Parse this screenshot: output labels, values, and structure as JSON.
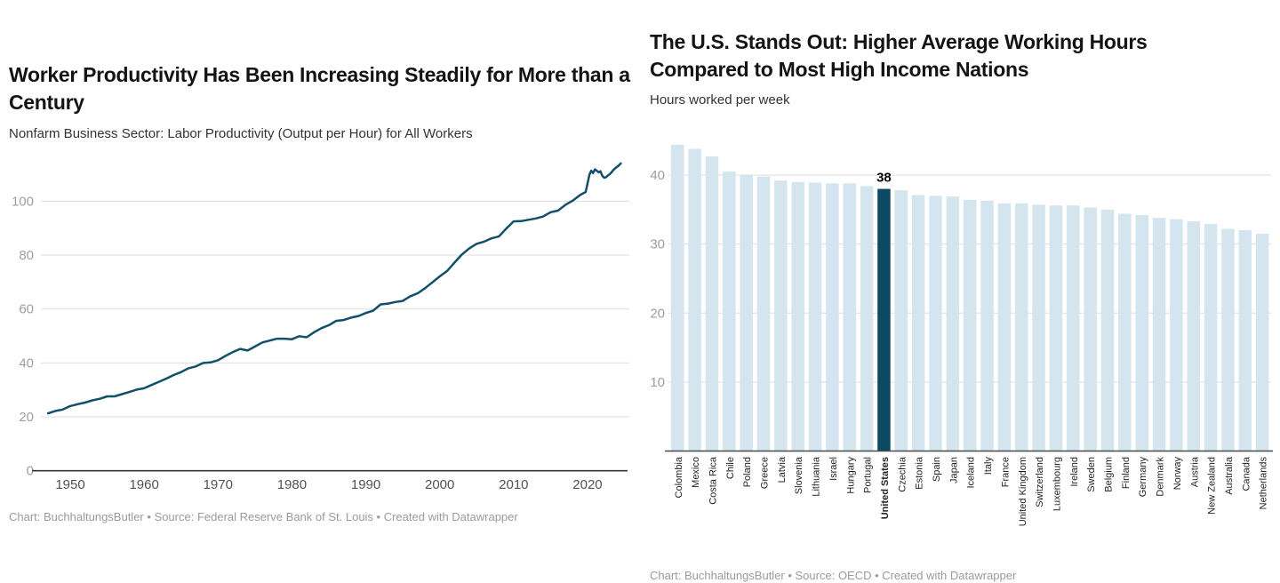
{
  "chart_data": [
    {
      "type": "line",
      "title": "Worker Productivity Has Been Increasing Steadily for More than a Century",
      "subtitle": "Nonfarm Business Sector: Labor Productivity (Output per Hour) for All Workers",
      "footer": "Chart: BuchhaltungsButler • Source: Federal Reserve Bank of St. Louis • Created with Datawrapper",
      "xlabel": "",
      "ylabel": "",
      "x_ticks": [
        1950,
        1960,
        1970,
        1980,
        1990,
        2000,
        2010,
        2020
      ],
      "y_ticks": [
        0,
        20,
        40,
        60,
        80,
        100
      ],
      "xlim": [
        1946.5,
        2025.5
      ],
      "ylim": [
        0,
        121
      ],
      "grid": true,
      "legend": "none",
      "line_color": "#124f6b",
      "series": [
        {
          "name": "Labor productivity index (output per hour)",
          "points": [
            [
              1947,
              21.3
            ],
            [
              1948,
              22.2
            ],
            [
              1949,
              22.7
            ],
            [
              1950,
              24
            ],
            [
              1951,
              24.7
            ],
            [
              1952,
              25.3
            ],
            [
              1953,
              26.1
            ],
            [
              1954,
              26.7
            ],
            [
              1955,
              27.6
            ],
            [
              1956,
              27.6
            ],
            [
              1957,
              28.4
            ],
            [
              1958,
              29.2
            ],
            [
              1959,
              30.1
            ],
            [
              1960,
              30.6
            ],
            [
              1961,
              31.8
            ],
            [
              1962,
              33
            ],
            [
              1963,
              34.2
            ],
            [
              1964,
              35.5
            ],
            [
              1965,
              36.6
            ],
            [
              1966,
              38
            ],
            [
              1967,
              38.7
            ],
            [
              1968,
              40
            ],
            [
              1969,
              40.2
            ],
            [
              1970,
              41
            ],
            [
              1971,
              42.6
            ],
            [
              1972,
              44
            ],
            [
              1973,
              45.2
            ],
            [
              1974,
              44.6
            ],
            [
              1975,
              46.1
            ],
            [
              1976,
              47.6
            ],
            [
              1977,
              48.3
            ],
            [
              1978,
              49
            ],
            [
              1979,
              49
            ],
            [
              1980,
              48.8
            ],
            [
              1981,
              49.9
            ],
            [
              1982,
              49.5
            ],
            [
              1983,
              51.4
            ],
            [
              1984,
              52.9
            ],
            [
              1985,
              54
            ],
            [
              1986,
              55.6
            ],
            [
              1987,
              55.9
            ],
            [
              1988,
              56.8
            ],
            [
              1989,
              57.4
            ],
            [
              1990,
              58.5
            ],
            [
              1991,
              59.4
            ],
            [
              1992,
              61.7
            ],
            [
              1993,
              62
            ],
            [
              1994,
              62.6
            ],
            [
              1995,
              63
            ],
            [
              1996,
              64.7
            ],
            [
              1997,
              65.8
            ],
            [
              1998,
              67.7
            ],
            [
              1999,
              69.9
            ],
            [
              2000,
              72.1
            ],
            [
              2001,
              74.1
            ],
            [
              2002,
              77.2
            ],
            [
              2003,
              80.2
            ],
            [
              2004,
              82.5
            ],
            [
              2005,
              84.2
            ],
            [
              2006,
              85
            ],
            [
              2007,
              86.2
            ],
            [
              2008,
              86.9
            ],
            [
              2009,
              89.8
            ],
            [
              2010,
              92.5
            ],
            [
              2011,
              92.6
            ],
            [
              2012,
              93.1
            ],
            [
              2013,
              93.6
            ],
            [
              2014,
              94.3
            ],
            [
              2015,
              95.9
            ],
            [
              2016,
              96.5
            ],
            [
              2017,
              98.6
            ],
            [
              2018,
              100.2
            ],
            [
              2019,
              102.3
            ],
            [
              2019.75,
              103.4
            ],
            [
              2020.25,
              109.8
            ],
            [
              2020.5,
              111.3
            ],
            [
              2020.75,
              110.4
            ],
            [
              2021,
              111.8
            ],
            [
              2021.25,
              111.3
            ],
            [
              2021.5,
              110.7
            ],
            [
              2021.75,
              111.1
            ],
            [
              2022,
              109.4
            ],
            [
              2022.25,
              108.7
            ],
            [
              2022.5,
              108.9
            ],
            [
              2022.75,
              109.5
            ],
            [
              2023,
              110
            ],
            [
              2023.25,
              110.7
            ],
            [
              2023.5,
              111.6
            ],
            [
              2023.75,
              112.2
            ],
            [
              2024,
              112.7
            ],
            [
              2024.25,
              113.3
            ],
            [
              2024.5,
              114
            ]
          ]
        }
      ]
    },
    {
      "type": "bar",
      "title": "The U.S. Stands Out: Higher Average Working Hours Compared to Most High Income Nations",
      "subtitle": "Hours worked per week",
      "footer_clipped": "Chart: BuchhaltungsButler • Source: OECD • Created with Datawrapper",
      "xlabel": "",
      "ylabel": "",
      "y_ticks": [
        10,
        20,
        30,
        40
      ],
      "ylim": [
        0,
        46
      ],
      "grid": true,
      "legend": "none",
      "bar_color": "#d4e5ef",
      "highlight_color": "#0c4a64",
      "categories": [
        "Colombia",
        "Mexico",
        "Costa Rica",
        "Chile",
        "Poland",
        "Greece",
        "Latvia",
        "Slovenia",
        "Lithuania",
        "Israel",
        "Hungary",
        "Portugal",
        "United States",
        "Czechia",
        "Estonia",
        "Spain",
        "Japan",
        "Iceland",
        "Italy",
        "France",
        "United Kingdom",
        "Switzerland",
        "Luxembourg",
        "Ireland",
        "Sweden",
        "Belgium",
        "Finland",
        "Germany",
        "Denmark",
        "Norway",
        "Austria",
        "New Zealand",
        "Australia",
        "Canada",
        "Netherlands"
      ],
      "values": [
        44.4,
        43.8,
        42.7,
        40.5,
        40.0,
        39.8,
        39.2,
        39.0,
        38.9,
        38.8,
        38.8,
        38.4,
        38,
        37.8,
        37.1,
        37.0,
        36.9,
        36.4,
        36.3,
        35.9,
        35.9,
        35.7,
        35.6,
        35.6,
        35.3,
        35.0,
        34.4,
        34.2,
        33.8,
        33.6,
        33.3,
        32.9,
        32.2,
        32.0,
        31.5
      ],
      "highlight": {
        "index": 12,
        "category": "United States",
        "value_label": "38"
      }
    }
  ],
  "colors": {
    "background": "#ffffff",
    "line": "#124f6b",
    "bar_light": "#d4e5ef",
    "bar_dark": "#0c4a64",
    "gridline": "#dedede",
    "axis_line_left": "#333333",
    "axis_line_right": "#4a4a4a",
    "y_tick_label": "#9e9e9e",
    "x_tick_label": "#525252",
    "country_label": "#242424",
    "title_text": "#141414",
    "subtitle_text": "#333333",
    "footer_text": "#9b9b9b"
  }
}
